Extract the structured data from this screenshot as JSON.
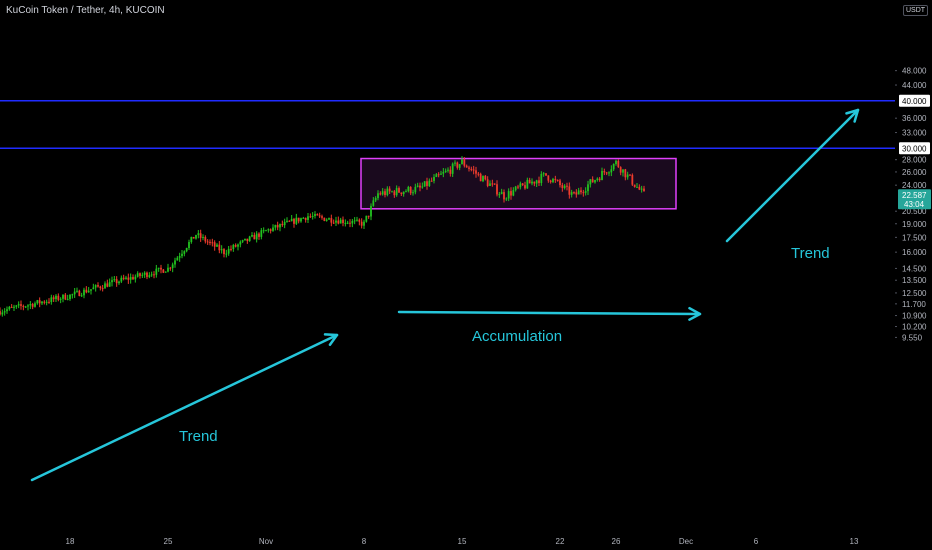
{
  "header": {
    "symbol_title": "KuCoin Token / Tether, 4h, KUCOIN",
    "currency": "USDT"
  },
  "colors": {
    "background": "#000000",
    "up_candle": "#26a69a",
    "up_candle_bright": "#22c41f",
    "down_candle": "#ef3b2c",
    "horizontal_lines": "#1f2bff",
    "box_border": "#e040fb",
    "box_fill": "#1a0a1e",
    "arrows": "#26c6da",
    "last_price_badge": "#26a69a"
  },
  "chart_data": {
    "type": "candlestick",
    "title": "KuCoin Token / Tether, 4h, KUCOIN",
    "x_ticks": [
      "18",
      "25",
      "Nov",
      "8",
      "15",
      "22",
      "26",
      "Dec",
      "6",
      "13"
    ],
    "y_ticks": [
      "48.000",
      "44.000",
      "40.000",
      "36.000",
      "33.000",
      "30.000",
      "28.000",
      "26.000",
      "24.000",
      "22.587",
      "20.500",
      "19.000",
      "17.500",
      "16.000",
      "14.500",
      "13.500",
      "12.500",
      "11.700",
      "10.900",
      "10.200",
      "9.550"
    ],
    "y_scale": "log",
    "ylim": [
      9.0,
      56.0
    ],
    "horizontal_levels": [
      40.0,
      30.0
    ],
    "last_price": "22.587",
    "countdown": "43:04",
    "accumulation_box": {
      "start": "Nov 8",
      "end": "Nov 30",
      "low": 20.8,
      "high": 28.2
    },
    "series_path": [
      {
        "x": "Oct 13",
        "price": 11.2
      },
      {
        "x": "Oct 18",
        "price": 12.3
      },
      {
        "x": "Oct 21",
        "price": 13.3
      },
      {
        "x": "Oct 25",
        "price": 14.5
      },
      {
        "x": "Oct 27",
        "price": 17.8
      },
      {
        "x": "Oct 29",
        "price": 16.0
      },
      {
        "x": "Nov 1",
        "price": 18.2
      },
      {
        "x": "Nov 4",
        "price": 19.9
      },
      {
        "x": "Nov 8",
        "price": 19.0
      },
      {
        "x": "Nov 9",
        "price": 22.8
      },
      {
        "x": "Nov 12",
        "price": 23.5
      },
      {
        "x": "Nov 15",
        "price": 27.6
      },
      {
        "x": "Nov 18",
        "price": 22.5
      },
      {
        "x": "Nov 21",
        "price": 25.5
      },
      {
        "x": "Nov 23",
        "price": 22.5
      },
      {
        "x": "Nov 26",
        "price": 27.5
      },
      {
        "x": "Nov 28",
        "price": 22.6
      }
    ],
    "annotations": {
      "trend_left": "Trend",
      "accumulation": "Accumulation",
      "trend_right": "Trend"
    }
  }
}
